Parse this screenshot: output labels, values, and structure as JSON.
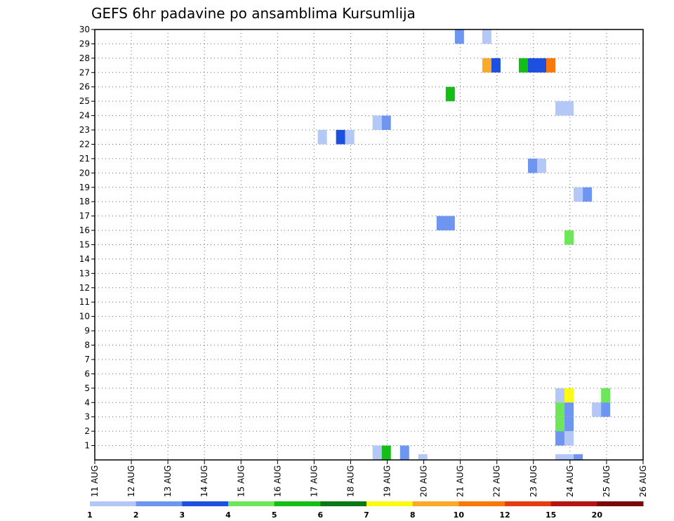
{
  "chart_data": {
    "type": "heatmap",
    "title": "GEFS 6hr padavine po ansamblima Kursumlija",
    "x_start_day": 11,
    "x_end_day": 26,
    "x_tick_labels": [
      "11 AUG",
      "12 AUG",
      "13 AUG",
      "14 AUG",
      "15 AUG",
      "16 AUG",
      "17 AUG",
      "18 AUG",
      "19 AUG",
      "20 AUG",
      "21 AUG",
      "22 AUG",
      "23 AUG",
      "24 AUG",
      "25 AUG",
      "26 AUG"
    ],
    "y_tick_labels": [
      "1",
      "2",
      "3",
      "4",
      "5",
      "6",
      "7",
      "8",
      "9",
      "10",
      "11",
      "12",
      "13",
      "14",
      "15",
      "16",
      "17",
      "18",
      "19",
      "20",
      "21",
      "22",
      "23",
      "24",
      "25",
      "26",
      "27",
      "28",
      "29",
      "30"
    ],
    "ylim": [
      0,
      30
    ],
    "grid": true,
    "colorbar": {
      "colors": [
        "#b4c8f8",
        "#6e96f0",
        "#1e50e0",
        "#6ee65a",
        "#14be14",
        "#0a7814",
        "#fafa14",
        "#faaa28",
        "#fa780a",
        "#e63c14",
        "#b41414",
        "#780a0a"
      ],
      "labels": [
        "1",
        "2",
        "3",
        "4",
        "5",
        "6",
        "7",
        "8",
        "10",
        "12",
        "15",
        "20"
      ],
      "label_positions": [
        0,
        1,
        2,
        3,
        4,
        5,
        6,
        7,
        8,
        9,
        10,
        11
      ]
    },
    "cells": [
      {
        "x": 20.85,
        "y": 30,
        "w": 0.25,
        "h": 1,
        "level": 1
      },
      {
        "x": 21.6,
        "y": 30,
        "w": 0.25,
        "h": 1,
        "level": 0
      },
      {
        "x": 21.6,
        "y": 28,
        "w": 0.25,
        "h": 1,
        "level": 7
      },
      {
        "x": 21.85,
        "y": 28,
        "w": 0.25,
        "h": 1,
        "level": 2
      },
      {
        "x": 22.6,
        "y": 28,
        "w": 0.25,
        "h": 1,
        "level": 4
      },
      {
        "x": 22.85,
        "y": 28,
        "w": 0.5,
        "h": 1,
        "level": 2
      },
      {
        "x": 23.35,
        "y": 28,
        "w": 0.25,
        "h": 1,
        "level": 8
      },
      {
        "x": 20.6,
        "y": 26,
        "w": 0.25,
        "h": 1,
        "level": 4
      },
      {
        "x": 23.6,
        "y": 25,
        "w": 0.5,
        "h": 1,
        "level": 0
      },
      {
        "x": 18.6,
        "y": 24,
        "w": 0.25,
        "h": 1,
        "level": 0
      },
      {
        "x": 18.85,
        "y": 24,
        "w": 0.25,
        "h": 1,
        "level": 1
      },
      {
        "x": 17.1,
        "y": 23,
        "w": 0.25,
        "h": 1,
        "level": 0
      },
      {
        "x": 17.6,
        "y": 23,
        "w": 0.25,
        "h": 1,
        "level": 2
      },
      {
        "x": 17.85,
        "y": 23,
        "w": 0.25,
        "h": 1,
        "level": 0
      },
      {
        "x": 22.85,
        "y": 21,
        "w": 0.25,
        "h": 1,
        "level": 1
      },
      {
        "x": 23.1,
        "y": 21,
        "w": 0.25,
        "h": 1,
        "level": 0
      },
      {
        "x": 24.1,
        "y": 19,
        "w": 0.25,
        "h": 1,
        "level": 0
      },
      {
        "x": 24.35,
        "y": 19,
        "w": 0.25,
        "h": 1,
        "level": 1
      },
      {
        "x": 20.35,
        "y": 17,
        "w": 0.5,
        "h": 1,
        "level": 1
      },
      {
        "x": 23.85,
        "y": 16,
        "w": 0.25,
        "h": 1,
        "level": 3
      },
      {
        "x": 23.6,
        "y": 5,
        "w": 0.25,
        "h": 1,
        "level": 0
      },
      {
        "x": 23.85,
        "y": 5,
        "w": 0.25,
        "h": 1,
        "level": 6
      },
      {
        "x": 24.85,
        "y": 5,
        "w": 0.25,
        "h": 1,
        "level": 3
      },
      {
        "x": 23.6,
        "y": 4,
        "w": 0.25,
        "h": 1,
        "level": 3
      },
      {
        "x": 23.85,
        "y": 4,
        "w": 0.25,
        "h": 1,
        "level": 1
      },
      {
        "x": 24.6,
        "y": 4,
        "w": 0.25,
        "h": 1,
        "level": 0
      },
      {
        "x": 24.85,
        "y": 4,
        "w": 0.25,
        "h": 1,
        "level": 1
      },
      {
        "x": 23.6,
        "y": 3,
        "w": 0.25,
        "h": 1,
        "level": 3
      },
      {
        "x": 23.85,
        "y": 3,
        "w": 0.25,
        "h": 1,
        "level": 1
      },
      {
        "x": 23.6,
        "y": 2,
        "w": 0.25,
        "h": 1,
        "level": 1
      },
      {
        "x": 23.85,
        "y": 2,
        "w": 0.25,
        "h": 1,
        "level": 0
      },
      {
        "x": 18.6,
        "y": 1,
        "w": 0.25,
        "h": 1,
        "level": 0
      },
      {
        "x": 18.85,
        "y": 1,
        "w": 0.25,
        "h": 1,
        "level": 4
      },
      {
        "x": 19.35,
        "y": 1,
        "w": 0.25,
        "h": 1,
        "level": 1
      },
      {
        "x": 19.85,
        "y": 0.4,
        "w": 0.25,
        "h": 0.4,
        "level": 0
      },
      {
        "x": 23.6,
        "y": 0.4,
        "w": 0.5,
        "h": 0.4,
        "level": 0
      },
      {
        "x": 24.1,
        "y": 0.4,
        "w": 0.25,
        "h": 0.4,
        "level": 1
      }
    ]
  }
}
